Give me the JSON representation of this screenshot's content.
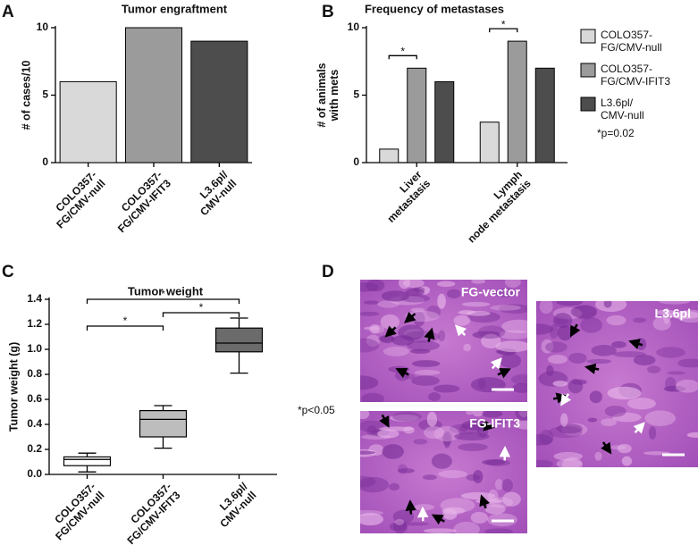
{
  "chart_data": [
    {
      "type": "bar",
      "panel_label": "A",
      "title": "Tumor engraftment",
      "ylabel": "# of cases/10",
      "categories": [
        "COLO357-\nFG/CMV-null",
        "COLO357-\nFG/CMV-IFIT3",
        "L3.6pl/\nCMV-null"
      ],
      "values": [
        6,
        10,
        9
      ],
      "colors": [
        "#d9d9d9",
        "#9b9b9b",
        "#4d4d4d"
      ],
      "ylim": [
        0,
        10
      ],
      "yticks": [
        0,
        5,
        10
      ]
    },
    {
      "type": "grouped_bar",
      "panel_label": "B",
      "title": "Frequency of metastases",
      "ylabel": "# of animals\nwith mets",
      "categories": [
        "Liver\nmetastasis",
        "Lymph\nnode metastasis"
      ],
      "series": [
        {
          "name": "COLO357-\nFG/CMV-null",
          "color": "#d9d9d9",
          "values": [
            1,
            3
          ]
        },
        {
          "name": "COLO357-\nFG/CMV-IFIT3",
          "color": "#9b9b9b",
          "values": [
            7,
            9
          ]
        },
        {
          "name": "L3.6pl/\nCMV-null",
          "color": "#4d4d4d",
          "values": [
            6,
            7
          ]
        }
      ],
      "ylim": [
        0,
        10
      ],
      "yticks": [
        0,
        5,
        10
      ],
      "legend": "right",
      "significance": [
        {
          "category": 0,
          "series": [
            0,
            1
          ],
          "label": "*"
        },
        {
          "category": 1,
          "series": [
            0,
            1
          ],
          "label": "*"
        }
      ],
      "annotation": "*p=0.02"
    },
    {
      "type": "box",
      "panel_label": "C",
      "title": "Tumor weight",
      "ylabel": "Tumor weight (g)",
      "categories": [
        "COLO357-\nFG/CMV-null",
        "COLO357-\nFG/CMV-IFIT3",
        "L3.6pl/\nCMV-null"
      ],
      "boxes": [
        {
          "whislo": 0.02,
          "q1": 0.07,
          "med": 0.12,
          "q3": 0.14,
          "whishi": 0.17
        },
        {
          "whislo": 0.21,
          "q1": 0.3,
          "med": 0.44,
          "q3": 0.51,
          "whishi": 0.55
        },
        {
          "whislo": 0.81,
          "q1": 0.98,
          "med": 1.05,
          "q3": 1.17,
          "whishi": 1.25
        }
      ],
      "colors": [
        "#ffffff",
        "#bdbdbd",
        "#6b6b6b"
      ],
      "ylim": [
        0,
        1.4
      ],
      "yticks": [
        {
          "value": 0,
          "label": "0.0"
        },
        0.2,
        0.4,
        0.6,
        0.8,
        {
          "value": 1,
          "label": "1.0"
        },
        1.2,
        1.4
      ],
      "significance": [
        {
          "pair": [
            0,
            1
          ],
          "label": "*"
        },
        {
          "pair": [
            1,
            2
          ],
          "label": "*"
        },
        {
          "pair": [
            0,
            2
          ],
          "label": "*"
        }
      ],
      "annotation": "*p<0.05"
    },
    {
      "type": "image",
      "panel_label": "D",
      "images": [
        {
          "label": "FG-vector"
        },
        {
          "label": "FG-IFIT3"
        },
        {
          "label": "L3.6pl"
        }
      ]
    }
  ]
}
